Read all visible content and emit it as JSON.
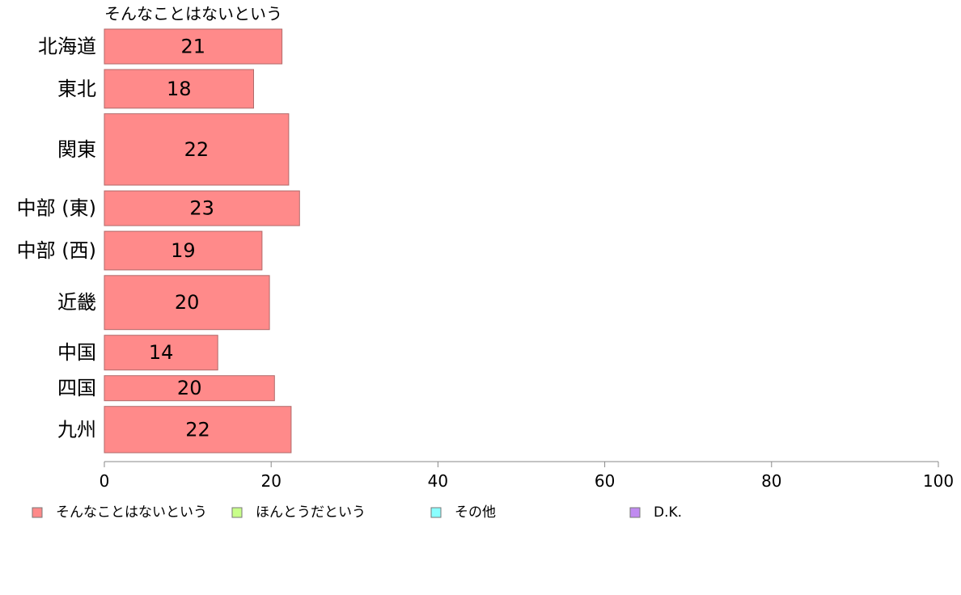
{
  "chart_data": {
    "type": "bar",
    "orientation": "horizontal",
    "title": "そんなことはないという",
    "categories": [
      "北海道",
      "東北",
      "関東",
      "中部 (東)",
      "中部 (西)",
      "近畿",
      "中国",
      "四国",
      "九州"
    ],
    "series": [
      {
        "name": "そんなことはないという",
        "values": [
          21.3,
          17.9,
          22.1,
          23.4,
          18.9,
          19.8,
          13.6,
          20.4,
          22.4
        ],
        "labels": [
          "21",
          "18",
          "22",
          "23",
          "19",
          "20",
          "14",
          "20",
          "22"
        ]
      }
    ],
    "bar_weights": [
      0.9,
      1.0,
      1.85,
      0.9,
      1.0,
      1.4,
      0.9,
      0.65,
      1.2
    ],
    "xlim": [
      0,
      100
    ],
    "xticks": [
      0,
      20,
      40,
      60,
      80,
      100
    ],
    "xtick_labels": [
      "0",
      "20",
      "40",
      "60",
      "80",
      "100"
    ],
    "legend": {
      "placement": "bottom",
      "entries": [
        {
          "label": "そんなことはないという",
          "color": "#ff8a8a"
        },
        {
          "label": "ほんとうだという",
          "color": "#c8ff8a"
        },
        {
          "label": "その他",
          "color": "#8affff"
        },
        {
          "label": "D.K.",
          "color": "#c08af0"
        }
      ]
    },
    "colors": {
      "bar": "#ff8a8a",
      "bar_stroke": "#b06a6a",
      "axis": "#888888"
    },
    "grid": false
  }
}
